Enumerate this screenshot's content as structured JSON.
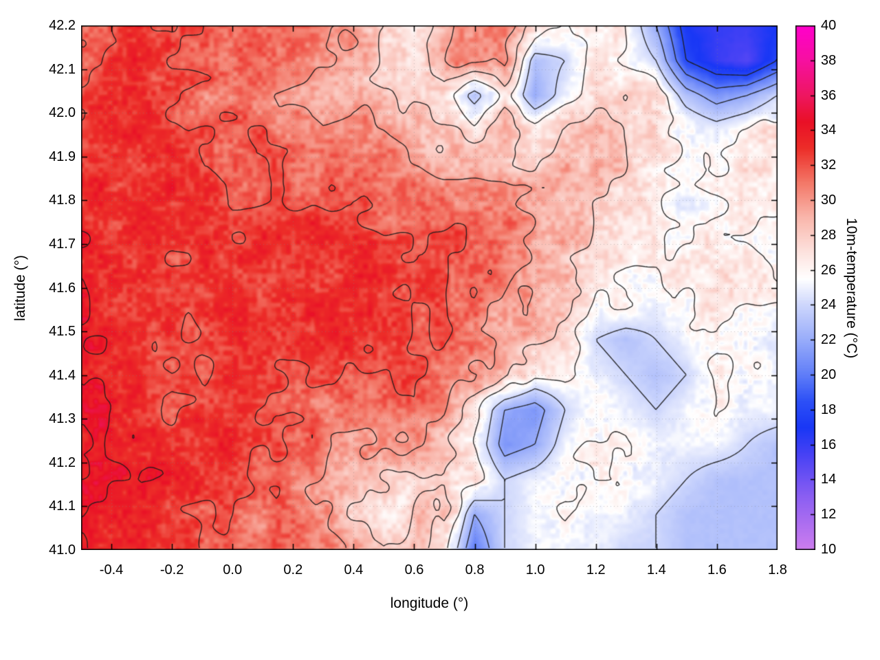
{
  "chart_data": {
    "type": "heatmap",
    "title": "",
    "xlabel": "longitude (°)",
    "ylabel": "latitude (°)",
    "colorbar_label": "10m-temperature (°C)",
    "x_range": [
      -0.5,
      1.8
    ],
    "y_range": [
      41.0,
      42.2
    ],
    "z_range": [
      10,
      40
    ],
    "grid_on": true,
    "legend": "colorbar-right",
    "x_ticks": [
      {
        "v": -0.4,
        "label": "-0.4"
      },
      {
        "v": -0.2,
        "label": "-0.2"
      },
      {
        "v": 0.0,
        "label": "0.0"
      },
      {
        "v": 0.2,
        "label": "0.2"
      },
      {
        "v": 0.4,
        "label": "0.4"
      },
      {
        "v": 0.6,
        "label": "0.6"
      },
      {
        "v": 0.8,
        "label": "0.8"
      },
      {
        "v": 1.0,
        "label": "1.0"
      },
      {
        "v": 1.2,
        "label": "1.2"
      },
      {
        "v": 1.4,
        "label": "1.4"
      },
      {
        "v": 1.6,
        "label": "1.6"
      },
      {
        "v": 1.8,
        "label": "1.8"
      }
    ],
    "y_ticks": [
      {
        "v": 41.0,
        "label": "41.0"
      },
      {
        "v": 41.1,
        "label": "41.1"
      },
      {
        "v": 41.2,
        "label": "41.2"
      },
      {
        "v": 41.3,
        "label": "41.3"
      },
      {
        "v": 41.4,
        "label": "41.4"
      },
      {
        "v": 41.5,
        "label": "41.5"
      },
      {
        "v": 41.6,
        "label": "41.6"
      },
      {
        "v": 41.7,
        "label": "41.7"
      },
      {
        "v": 41.8,
        "label": "41.8"
      },
      {
        "v": 41.9,
        "label": "41.9"
      },
      {
        "v": 42.0,
        "label": "42.0"
      },
      {
        "v": 42.1,
        "label": "42.1"
      },
      {
        "v": 42.2,
        "label": "42.2"
      }
    ],
    "colorbar_ticks": [
      {
        "v": 10,
        "label": "10"
      },
      {
        "v": 12,
        "label": "12"
      },
      {
        "v": 14,
        "label": "14"
      },
      {
        "v": 16,
        "label": "16"
      },
      {
        "v": 18,
        "label": "18"
      },
      {
        "v": 20,
        "label": "20"
      },
      {
        "v": 22,
        "label": "22"
      },
      {
        "v": 24,
        "label": "24"
      },
      {
        "v": 26,
        "label": "26"
      },
      {
        "v": 28,
        "label": "28"
      },
      {
        "v": 30,
        "label": "30"
      },
      {
        "v": 32,
        "label": "32"
      },
      {
        "v": 34,
        "label": "34"
      },
      {
        "v": 36,
        "label": "36"
      },
      {
        "v": 38,
        "label": "38"
      },
      {
        "v": 40,
        "label": "40"
      }
    ],
    "contour_levels": [
      18,
      20,
      22,
      24,
      26,
      28,
      30,
      32,
      34
    ],
    "contour_color": "#1c1c1c",
    "palette_stops": [
      [
        10.0,
        205,
        125,
        238
      ],
      [
        13.0,
        140,
        95,
        242
      ],
      [
        15.5,
        70,
        65,
        244
      ],
      [
        17.0,
        25,
        55,
        245
      ],
      [
        18.5,
        45,
        80,
        246
      ],
      [
        20.0,
        95,
        125,
        248
      ],
      [
        22.0,
        152,
        172,
        250
      ],
      [
        24.0,
        205,
        214,
        252
      ],
      [
        25.5,
        255,
        255,
        255
      ],
      [
        27.0,
        253,
        227,
        223
      ],
      [
        29.0,
        249,
        183,
        172
      ],
      [
        31.0,
        243,
        120,
        104
      ],
      [
        33.0,
        236,
        45,
        40
      ],
      [
        34.5,
        233,
        16,
        38
      ],
      [
        36.0,
        238,
        22,
        96
      ],
      [
        38.0,
        246,
        16,
        160
      ],
      [
        40.0,
        255,
        0,
        204
      ]
    ],
    "grid": {
      "nx": 24,
      "ny": 16,
      "lon_start": -0.5,
      "lon_step": 0.1,
      "lat_start": 42.2,
      "lat_step": -0.08,
      "values": [
        [
          32,
          32,
          33,
          32,
          32,
          31,
          32,
          32,
          31,
          30,
          28,
          27,
          29,
          31,
          31,
          28,
          26,
          27,
          26,
          22,
          17,
          16,
          16,
          17
        ],
        [
          32,
          33,
          33,
          32,
          32,
          31,
          32,
          31,
          30,
          29,
          28,
          27,
          30,
          31,
          30,
          23,
          24,
          27,
          26,
          24,
          18,
          16,
          15,
          18
        ],
        [
          32,
          33,
          33,
          32,
          31,
          31,
          31,
          30,
          29,
          29,
          28,
          28,
          27,
          23,
          27,
          22,
          25,
          27,
          28,
          27,
          23,
          21,
          22,
          24
        ],
        [
          33,
          33,
          33,
          32,
          32,
          32,
          32,
          31,
          30,
          31,
          30,
          29,
          28,
          27,
          29,
          27,
          28,
          29,
          28,
          27,
          26,
          25,
          26,
          27
        ],
        [
          33,
          33,
          33,
          33,
          32,
          32,
          32,
          31,
          31,
          31,
          31,
          30,
          29,
          29,
          29,
          28,
          29,
          29,
          28,
          27,
          26,
          26,
          27,
          27
        ],
        [
          33,
          33,
          33,
          33,
          33,
          32,
          32,
          32,
          32,
          32,
          31,
          31,
          31,
          31,
          31,
          30,
          29,
          28,
          27,
          26,
          25,
          26,
          27,
          26
        ],
        [
          34,
          33,
          33,
          33,
          33,
          32,
          33,
          33,
          33,
          33,
          32,
          32,
          32,
          32,
          31,
          30,
          29,
          28,
          27,
          26,
          26,
          26,
          26,
          26
        ],
        [
          33,
          33,
          33,
          32,
          33,
          33,
          33,
          33,
          33,
          33,
          33,
          32,
          32,
          32,
          31,
          30,
          29,
          27,
          26,
          26,
          27,
          27,
          27,
          26
        ],
        [
          34,
          33,
          33,
          33,
          33,
          33,
          33,
          33,
          33,
          33,
          33,
          32,
          32,
          31,
          30,
          29,
          28,
          26,
          26,
          25,
          26,
          27,
          26,
          26
        ],
        [
          34,
          34,
          33,
          32,
          32,
          33,
          33,
          33,
          33,
          33,
          33,
          32,
          32,
          31,
          30,
          29,
          27,
          24,
          23,
          24,
          25,
          26,
          26,
          25
        ],
        [
          34,
          33,
          33,
          32,
          32,
          33,
          33,
          32,
          32,
          32,
          32,
          32,
          31,
          30,
          29,
          26,
          26,
          25,
          24,
          23,
          24,
          26,
          26,
          25
        ],
        [
          35,
          34,
          33,
          32,
          33,
          33,
          32,
          32,
          31,
          31,
          31,
          31,
          30,
          27,
          22,
          21,
          24,
          26,
          25,
          24,
          25,
          26,
          25,
          25
        ],
        [
          34,
          34,
          33,
          33,
          33,
          33,
          32,
          32,
          31,
          30,
          30,
          30,
          29,
          26,
          21,
          22,
          25,
          26,
          26,
          25,
          25,
          25,
          24,
          23
        ],
        [
          34,
          34,
          34,
          33,
          33,
          32,
          32,
          31,
          30,
          29,
          28,
          27,
          28,
          27,
          24,
          25,
          26,
          26,
          26,
          25,
          24,
          23,
          23,
          23
        ],
        [
          34,
          34,
          34,
          33,
          32,
          32,
          31,
          31,
          30,
          28,
          26,
          28,
          29,
          22,
          24,
          25,
          26,
          25,
          25,
          24,
          23,
          23,
          23,
          23
        ],
        [
          34,
          34,
          33,
          33,
          32,
          32,
          31,
          31,
          30,
          30,
          28,
          29,
          27,
          20,
          24,
          25,
          25,
          25,
          24,
          24,
          23,
          23,
          23,
          23
        ]
      ]
    }
  }
}
